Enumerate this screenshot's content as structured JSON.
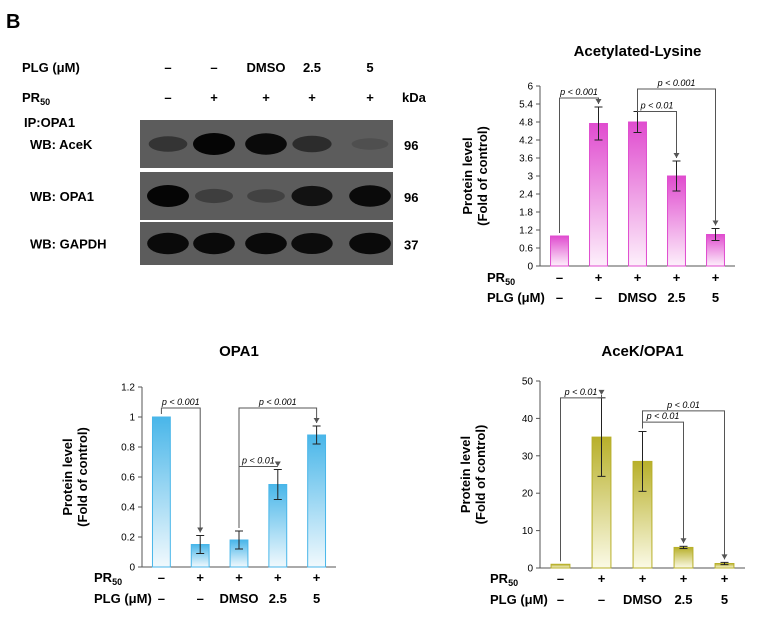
{
  "panel_label": "B",
  "blot": {
    "conditions": [
      {
        "name": "PLG (μM)",
        "values": [
          "–",
          "–",
          "DMSO",
          "2.5",
          "5"
        ]
      },
      {
        "name": "PR",
        "sub": "50",
        "values": [
          "–",
          "+",
          "+",
          "+",
          "+"
        ]
      }
    ],
    "kda_label": "kDa",
    "ip_label": "IP:OPA1",
    "rows": [
      {
        "name": "WB: AceK",
        "kda": "96",
        "intensity": [
          0.45,
          1.0,
          0.95,
          0.55,
          0.12
        ]
      },
      {
        "name": "WB: OPA1",
        "kda": "96",
        "intensity": [
          1.0,
          0.35,
          0.3,
          0.85,
          0.95
        ]
      },
      {
        "name": "WB: GAPDH",
        "kda": "37",
        "intensity": [
          0.95,
          0.95,
          0.95,
          0.92,
          0.95
        ]
      }
    ]
  },
  "chart_data": [
    {
      "type": "bar",
      "title": "Acetylated-Lysine",
      "ylabel": [
        "Protein level",
        "(Fold of control)"
      ],
      "ylim": [
        0,
        6
      ],
      "yticks": [
        "0",
        "0.6",
        "1.2",
        "1.8",
        "2.4",
        "3",
        "3.6",
        "4.2",
        "4.8",
        "5.4",
        "6"
      ],
      "values": [
        1.0,
        4.75,
        4.8,
        3.0,
        1.05
      ],
      "errors": [
        0,
        0.55,
        0.35,
        0.5,
        0.2
      ],
      "color_top": "#e04ccf",
      "color_bottom": "#fdf0fb",
      "rows": [
        {
          "name": "PR",
          "sub": "50",
          "values": [
            "–",
            "+",
            "+",
            "+",
            "+"
          ]
        },
        {
          "name": "PLG (μM)",
          "values": [
            "–",
            "–",
            "DMSO",
            "2.5",
            "5"
          ]
        }
      ],
      "annotations": [
        {
          "from": 0,
          "to": 1,
          "y": 5.6,
          "text": "p < 0.001"
        },
        {
          "from": 2,
          "to": 4,
          "y": 5.9,
          "text": "p < 0.001"
        },
        {
          "from": 2,
          "to": 3,
          "y": 5.15,
          "text": "p < 0.01"
        }
      ]
    },
    {
      "type": "bar",
      "title": "OPA1",
      "ylabel": [
        "Protein level",
        "(Fold of control)"
      ],
      "ylim": [
        0,
        1.2
      ],
      "yticks": [
        "0",
        "0.2",
        "0.4",
        "0.6",
        "0.8",
        "1",
        "1.2"
      ],
      "values": [
        1.0,
        0.15,
        0.18,
        0.55,
        0.88
      ],
      "errors": [
        0,
        0.06,
        0.06,
        0.1,
        0.06
      ],
      "color_top": "#49b6e9",
      "color_bottom": "#f1f9fd",
      "rows": [
        {
          "name": "PR",
          "sub": "50",
          "values": [
            "–",
            "+",
            "+",
            "+",
            "+"
          ]
        },
        {
          "name": "PLG (μM)",
          "values": [
            "–",
            "–",
            "DMSO",
            "2.5",
            "5"
          ]
        }
      ],
      "annotations": [
        {
          "from": 0,
          "to": 1,
          "y": 1.06,
          "text": "p < 0.001"
        },
        {
          "from": 2,
          "to": 4,
          "y": 1.06,
          "text": "p < 0.001"
        },
        {
          "from": 2,
          "to": 3,
          "y": 0.67,
          "text": "p < 0.01"
        }
      ]
    },
    {
      "type": "bar",
      "title": "AceK/OPA1",
      "ylabel": [
        "Protein level",
        "(Fold of control)"
      ],
      "ylim": [
        0,
        50
      ],
      "yticks": [
        "0",
        "10",
        "20",
        "30",
        "40",
        "50"
      ],
      "values": [
        1.0,
        35.0,
        28.5,
        5.5,
        1.2
      ],
      "errors": [
        0,
        10.5,
        8.0,
        0.3,
        0.3
      ],
      "color_top": "#b8b02a",
      "color_bottom": "#fbfae6",
      "rows": [
        {
          "name": "PR",
          "sub": "50",
          "values": [
            "–",
            "+",
            "+",
            "+",
            "+"
          ]
        },
        {
          "name": "PLG (μM)",
          "values": [
            "–",
            "–",
            "DMSO",
            "2.5",
            "5"
          ]
        }
      ],
      "annotations": [
        {
          "from": 0,
          "to": 1,
          "y": 45.5,
          "text": "p < 0.01"
        },
        {
          "from": 2,
          "to": 4,
          "y": 42.0,
          "text": "p < 0.01"
        },
        {
          "from": 2,
          "to": 3,
          "y": 39.0,
          "text": "p < 0.01"
        }
      ]
    }
  ]
}
